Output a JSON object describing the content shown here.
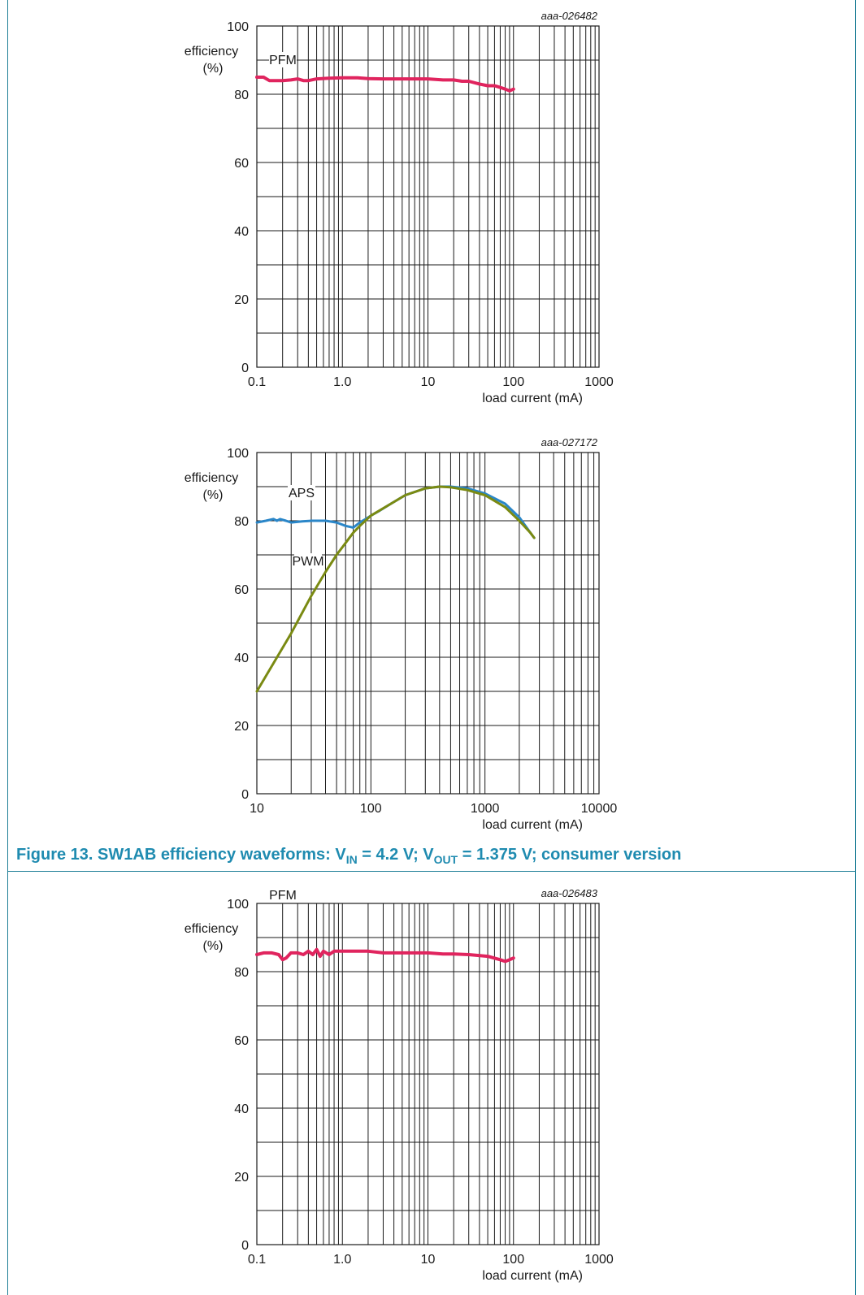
{
  "colors": {
    "frame": "#1f7f97",
    "caption": "#1f8bb0",
    "pfm": "#e0245e",
    "aps": "#2a86c8",
    "pwm": "#7a8a12"
  },
  "caption": {
    "prefix": "Figure 13.  SW1AB efficiency waveforms: V",
    "sub_in": "IN",
    "mid1": " = 4.2 V; V",
    "sub_out": "OUT",
    "suffix": " = 1.375 V; consumer version"
  },
  "chart_data": [
    {
      "type": "line",
      "code": "aaa-026482",
      "xlabel": "load current (mA)",
      "ylabel_line1": "efficiency",
      "ylabel_line2": "(%)",
      "xscale": "log",
      "xlim": [
        0.1,
        1000
      ],
      "ylim": [
        0,
        100
      ],
      "xtick_labels": [
        "0.1",
        "1.0",
        "10",
        "100",
        "1000"
      ],
      "ytick_labels": [
        "0",
        "20",
        "40",
        "60",
        "80",
        "100"
      ],
      "grid": true,
      "series": [
        {
          "name": "PFM",
          "color": "#e0245e",
          "x": [
            0.1,
            0.12,
            0.14,
            0.16,
            0.2,
            0.25,
            0.3,
            0.35,
            0.4,
            0.5,
            0.7,
            1,
            1.5,
            2,
            3,
            5,
            10,
            15,
            20,
            25,
            30,
            40,
            50,
            60,
            70,
            80,
            90,
            100
          ],
          "y": [
            85,
            85,
            84,
            84,
            84,
            84.2,
            84.5,
            84,
            84,
            84.5,
            84.7,
            84.8,
            84.8,
            84.6,
            84.5,
            84.5,
            84.5,
            84.2,
            84.2,
            83.8,
            83.8,
            83,
            82.5,
            82.5,
            82,
            81.5,
            81,
            81.5
          ]
        }
      ]
    },
    {
      "type": "line",
      "code": "aaa-027172",
      "xlabel": "load current (mA)",
      "ylabel_line1": "efficiency",
      "ylabel_line2": "(%)",
      "xscale": "log",
      "xlim": [
        10,
        10000
      ],
      "ylim": [
        0,
        100
      ],
      "xtick_labels": [
        "10",
        "100",
        "1000",
        "10000"
      ],
      "ytick_labels": [
        "0",
        "20",
        "40",
        "60",
        "80",
        "100"
      ],
      "grid": true,
      "series": [
        {
          "name": "APS",
          "color": "#2a86c8",
          "x": [
            10,
            12,
            14,
            15,
            16,
            18,
            20,
            25,
            30,
            35,
            40,
            50,
            60,
            70,
            80,
            90,
            100,
            120,
            150,
            200,
            300,
            400,
            500,
            700,
            1000,
            1500,
            2000,
            2500,
            2700
          ],
          "y": [
            79.5,
            80,
            80.5,
            80,
            80.5,
            80,
            79.5,
            79.8,
            80,
            80,
            80,
            79.5,
            78.5,
            78,
            79.5,
            80.5,
            81.5,
            83,
            85,
            87.5,
            89.5,
            90,
            90,
            89.5,
            88,
            85,
            81,
            76.5,
            75
          ]
        },
        {
          "name": "PWM",
          "color": "#7a8a12",
          "x": [
            10,
            20,
            30,
            40,
            50,
            60,
            70,
            80,
            100,
            150,
            200,
            300,
            400,
            500,
            700,
            1000,
            1500,
            2000,
            2500,
            2700
          ],
          "y": [
            30,
            47,
            58,
            65,
            70,
            73.5,
            76.5,
            78.5,
            81.5,
            85,
            87.5,
            89.5,
            90,
            89.8,
            89,
            87.5,
            84,
            80,
            76.5,
            75
          ]
        }
      ]
    },
    {
      "type": "line",
      "code": "aaa-026483",
      "xlabel": "load current (mA)",
      "ylabel_line1": "efficiency",
      "ylabel_line2": "(%)",
      "xscale": "log",
      "xlim": [
        0.1,
        1000
      ],
      "ylim": [
        0,
        100
      ],
      "xtick_labels": [
        "0.1",
        "1.0",
        "10",
        "100",
        "1000"
      ],
      "ytick_labels": [
        "0",
        "20",
        "40",
        "60",
        "80",
        "100"
      ],
      "grid": true,
      "series": [
        {
          "name": "PFM",
          "color": "#e0245e",
          "x": [
            0.1,
            0.12,
            0.15,
            0.18,
            0.2,
            0.22,
            0.25,
            0.3,
            0.35,
            0.4,
            0.45,
            0.5,
            0.55,
            0.6,
            0.7,
            0.8,
            1,
            1.5,
            2,
            3,
            5,
            10,
            15,
            20,
            30,
            50,
            70,
            80,
            90,
            100
          ],
          "y": [
            85,
            85.5,
            85.5,
            85,
            83.5,
            84,
            85.5,
            85.5,
            85,
            86,
            85,
            86.5,
            84.5,
            86,
            85,
            86,
            86,
            86,
            86,
            85.5,
            85.5,
            85.5,
            85.2,
            85.2,
            85,
            84.5,
            83.5,
            83,
            83.5,
            84
          ]
        }
      ]
    }
  ]
}
